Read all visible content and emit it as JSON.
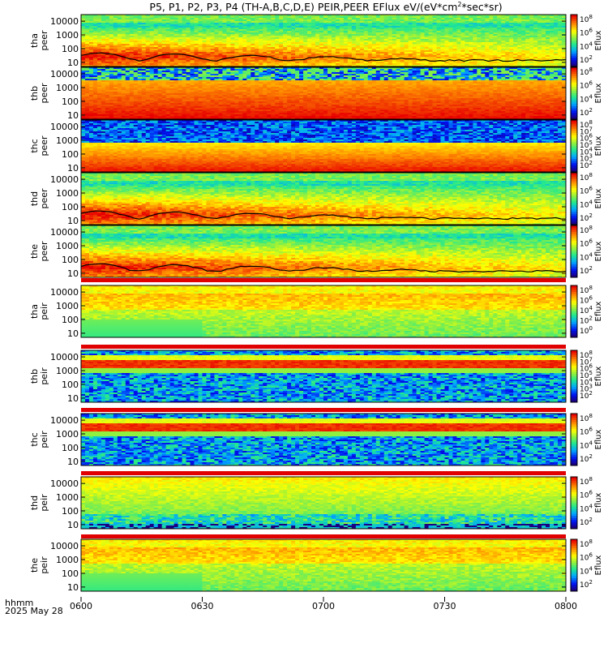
{
  "title": "P5, P1, P2, P3, P4 (TH-A,B,C,D,E) PEIR,PEER EFlux eV/(eV*cm",
  "title_sup": "2",
  "title_tail": "*sec*sr)",
  "footer": {
    "line1": "hhmm",
    "line2": "2025 May 28"
  },
  "colors": {
    "frame": "#000000",
    "sep_red": "#e00000"
  },
  "chart_data": {
    "type": "heatmap",
    "time_ticks": [
      "0600",
      "0630",
      "0700",
      "0730",
      "0800"
    ],
    "xlim": [
      "06:00",
      "08:00"
    ],
    "y_ticks": [
      "10",
      "100",
      "1000",
      "10000"
    ],
    "ylim": [
      5,
      30000
    ],
    "y_scale": "log",
    "colorbar_title": "Eflux",
    "panels": [
      {
        "probe": "tha",
        "species": "peer",
        "label_top": "tha",
        "label_bot": "peer",
        "cb_exps": [
          "2",
          "4",
          "6",
          "8"
        ],
        "style": "electron-hot",
        "overlay": true
      },
      {
        "probe": "thb",
        "species": "peer",
        "label_top": "thb",
        "label_bot": "peer",
        "cb_exps": [
          "2",
          "4",
          "6",
          "8"
        ],
        "style": "electron-saturated",
        "overlay": false
      },
      {
        "probe": "thc",
        "species": "peer",
        "label_top": "thc",
        "label_bot": "peer",
        "cb_exps": [
          "2",
          "3",
          "4",
          "5",
          "6",
          "7",
          "8"
        ],
        "style": "electron-banded",
        "overlay": false
      },
      {
        "probe": "thd",
        "species": "peer",
        "label_top": "thd",
        "label_bot": "peer",
        "cb_exps": [
          "2",
          "4",
          "6",
          "8"
        ],
        "style": "electron-hot",
        "overlay": true
      },
      {
        "probe": "the",
        "species": "peer",
        "label_top": "the",
        "label_bot": "peer",
        "cb_exps": [
          "2",
          "4",
          "6",
          "8"
        ],
        "style": "electron-hot",
        "overlay": true
      },
      {
        "probe": "tha",
        "species": "peir",
        "label_top": "tha",
        "label_bot": "peir",
        "cb_exps": [
          "0",
          "2",
          "4",
          "6",
          "8"
        ],
        "style": "ion-green",
        "overlay": false
      },
      {
        "probe": "thb",
        "species": "peir",
        "label_top": "thb",
        "label_bot": "peir",
        "cb_exps": [
          "2",
          "3",
          "4",
          "5",
          "6",
          "7",
          "8"
        ],
        "style": "ion-noisy",
        "overlay": false
      },
      {
        "probe": "thc",
        "species": "peir",
        "label_top": "thc",
        "label_bot": "peir",
        "cb_exps": [
          "2",
          "4",
          "6",
          "8"
        ],
        "style": "ion-noisy",
        "overlay": false
      },
      {
        "probe": "thd",
        "species": "peir",
        "label_top": "thd",
        "label_bot": "peir",
        "cb_exps": [
          "2",
          "4",
          "6",
          "8"
        ],
        "style": "ion-green-low",
        "overlay": false
      },
      {
        "probe": "the",
        "species": "peir",
        "label_top": "the",
        "label_bot": "peir",
        "cb_exps": [
          "2",
          "4",
          "6",
          "8"
        ],
        "style": "ion-green",
        "overlay": false
      }
    ]
  }
}
